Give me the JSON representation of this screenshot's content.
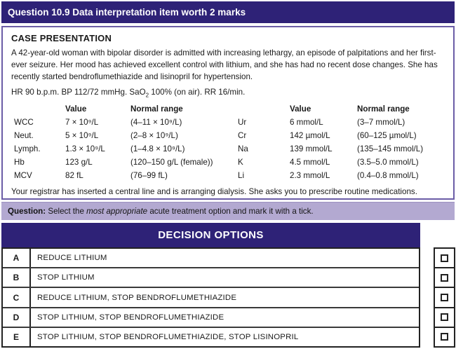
{
  "header": {
    "title": "Question 10.9 Data interpretation item worth 2 marks"
  },
  "case_presentation": {
    "heading": "CASE PRESENTATION",
    "paragraph": "A 42-year-old woman with bipolar disorder is admitted with increasing lethargy, an episode of palpitations and her first-ever seizure. Her mood has achieved excellent control with lithium, and she has had no recent dose changes. She has recently started bendroflumethiazide and lisinopril for hypertension.",
    "vitals": {
      "before_sub": "HR 90 b.p.m. BP 112/72 mmHg. SaO",
      "sub": "2",
      "after_sub": " 100% (on air). RR 16/min."
    },
    "labs": {
      "col_headers": [
        "Value",
        "Normal range"
      ],
      "left_rows": [
        {
          "label": "WCC",
          "value": "7 × 10⁹/L",
          "range": "(4–11 × 10⁹/L)"
        },
        {
          "label": "Neut.",
          "value": "5 × 10⁹/L",
          "range": "(2–8 × 10⁹/L)"
        },
        {
          "label": "Lymph.",
          "value": "1.3 × 10⁹/L",
          "range": "(1–4.8 × 10⁹/L)"
        },
        {
          "label": "Hb",
          "value": "123 g/L",
          "range": "(120–150 g/L (female))"
        },
        {
          "label": "MCV",
          "value": "82 fL",
          "range": "(76–99 fL)"
        }
      ],
      "right_rows": [
        {
          "label": "Ur",
          "value": "6 mmol/L",
          "range": "(3–7 mmol/L)"
        },
        {
          "label": "Cr",
          "value": "142 µmol/L",
          "range": "(60–125 µmol/L)"
        },
        {
          "label": "Na",
          "value": "139 mmol/L",
          "range": "(135–145 mmol/L)"
        },
        {
          "label": "K",
          "value": "4.5 mmol/L",
          "range": "(3.5–5.0 mmol/L)"
        },
        {
          "label": "Li",
          "value": "2.3 mmol/L",
          "range": "(0.4–0.8 mmol/L)"
        }
      ]
    },
    "registrar_note": "Your registrar has inserted a central line and is arranging dialysis. She asks you to prescribe routine medications."
  },
  "question_bar": {
    "label": "Question:",
    "text_before_italic": " Select the ",
    "italic": "most appropriate",
    "text_after_italic": " acute treatment option and mark it with a tick."
  },
  "decision": {
    "heading": "DECISION OPTIONS",
    "options": [
      {
        "letter": "A",
        "text": "REDUCE LITHIUM",
        "checked": false
      },
      {
        "letter": "B",
        "text": "STOP LITHIUM",
        "checked": false
      },
      {
        "letter": "C",
        "text": "REDUCE LITHIUM, STOP BENDROFLUMETHIAZIDE",
        "checked": false
      },
      {
        "letter": "D",
        "text": "STOP LITHIUM, STOP BENDROFLUMETHIAZIDE",
        "checked": false
      },
      {
        "letter": "E",
        "text": "STOP LITHIUM, STOP BENDROFLUMETHIAZIDE, STOP LISINOPRIL",
        "checked": false
      }
    ]
  },
  "colors": {
    "dark_purple": "#2e2277",
    "lavender": "#b3a9d1",
    "box_border_purple": "#6b5da6"
  }
}
